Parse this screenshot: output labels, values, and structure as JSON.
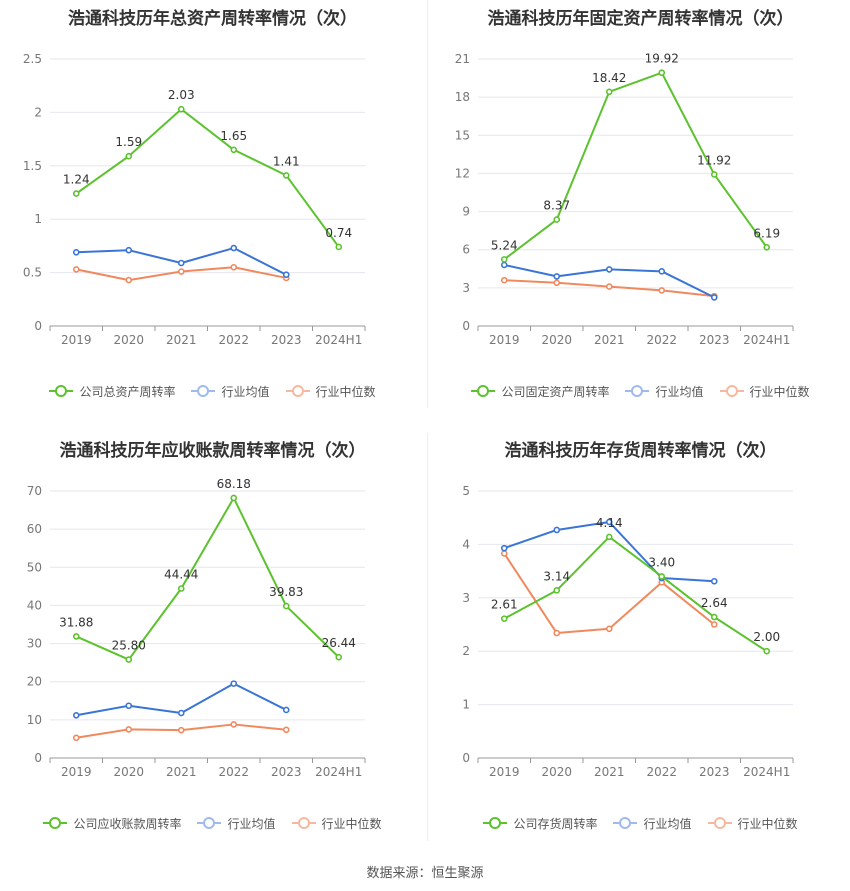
{
  "footer": "数据来源：恒生聚源",
  "colors": {
    "company": "#5cc22e",
    "avg": "#3a75d6",
    "median": "#f0895e",
    "grid": "#e6e6ee",
    "axis": "#999999"
  },
  "legend": {
    "avg": "行业均值",
    "median": "行业中位数"
  },
  "chart_data": [
    {
      "type": "line",
      "title": "浩通科技历年总资产周转率情况（次）",
      "categories": [
        "2019",
        "2020",
        "2021",
        "2022",
        "2023",
        "2024H1"
      ],
      "ylim": [
        0,
        2.5
      ],
      "yticks": [
        "0",
        "0.5",
        "1",
        "1.5",
        "2",
        "2.5"
      ],
      "series": [
        {
          "key": "company",
          "name": "公司总资产周转率",
          "values": [
            1.24,
            1.59,
            2.03,
            1.65,
            1.41,
            0.74
          ],
          "labels": [
            "1.24",
            "1.59",
            "2.03",
            "1.65",
            "1.41",
            "0.74"
          ]
        },
        {
          "key": "avg",
          "name": "行业均值",
          "values": [
            0.69,
            0.71,
            0.59,
            0.73,
            0.48,
            null
          ]
        },
        {
          "key": "median",
          "name": "行业中位数",
          "values": [
            0.53,
            0.43,
            0.51,
            0.55,
            0.45,
            null
          ]
        }
      ]
    },
    {
      "type": "line",
      "title": "浩通科技历年固定资产周转率情况（次）",
      "categories": [
        "2019",
        "2020",
        "2021",
        "2022",
        "2023",
        "2024H1"
      ],
      "ylim": [
        0,
        21
      ],
      "yticks": [
        "0",
        "3",
        "6",
        "9",
        "12",
        "15",
        "18",
        "21"
      ],
      "series": [
        {
          "key": "company",
          "name": "公司固定资产周转率",
          "values": [
            5.24,
            8.37,
            18.42,
            19.92,
            11.92,
            6.19
          ],
          "labels": [
            "5.24",
            "8.37",
            "18.42",
            "19.92",
            "11.92",
            "6.19"
          ]
        },
        {
          "key": "avg",
          "name": "行业均值",
          "values": [
            4.8,
            3.9,
            4.45,
            4.3,
            2.25,
            null
          ]
        },
        {
          "key": "median",
          "name": "行业中位数",
          "values": [
            3.6,
            3.4,
            3.1,
            2.8,
            2.35,
            null
          ]
        }
      ]
    },
    {
      "type": "line",
      "title": "浩通科技历年应收账款周转率情况（次）",
      "categories": [
        "2019",
        "2020",
        "2021",
        "2022",
        "2023",
        "2024H1"
      ],
      "ylim": [
        0,
        70
      ],
      "yticks": [
        "0",
        "10",
        "20",
        "30",
        "40",
        "50",
        "60",
        "70"
      ],
      "series": [
        {
          "key": "company",
          "name": "公司应收账款周转率",
          "values": [
            31.88,
            25.8,
            44.44,
            68.18,
            39.83,
            26.44
          ],
          "labels": [
            "31.88",
            "25.80",
            "44.44",
            "68.18",
            "39.83",
            "26.44"
          ]
        },
        {
          "key": "avg",
          "name": "行业均值",
          "values": [
            11.2,
            13.7,
            11.8,
            19.5,
            12.6,
            null
          ]
        },
        {
          "key": "median",
          "name": "行业中位数",
          "values": [
            5.3,
            7.5,
            7.3,
            8.8,
            7.4,
            null
          ]
        }
      ]
    },
    {
      "type": "line",
      "title": "浩通科技历年存货周转率情况（次）",
      "categories": [
        "2019",
        "2020",
        "2021",
        "2022",
        "2023",
        "2024H1"
      ],
      "ylim": [
        0,
        5
      ],
      "yticks": [
        "0",
        "1",
        "2",
        "3",
        "4",
        "5"
      ],
      "series": [
        {
          "key": "company",
          "name": "公司存货周转率",
          "values": [
            2.61,
            3.14,
            4.14,
            3.4,
            2.64,
            2.0
          ],
          "labels": [
            "2.61",
            "3.14",
            "4.14",
            "3.40",
            "2.64",
            "2.00"
          ]
        },
        {
          "key": "avg",
          "name": "行业均值",
          "values": [
            3.93,
            4.27,
            4.42,
            3.37,
            3.31,
            null
          ]
        },
        {
          "key": "median",
          "name": "行业中位数",
          "values": [
            3.83,
            2.34,
            2.42,
            3.29,
            2.5,
            null
          ]
        }
      ]
    }
  ]
}
